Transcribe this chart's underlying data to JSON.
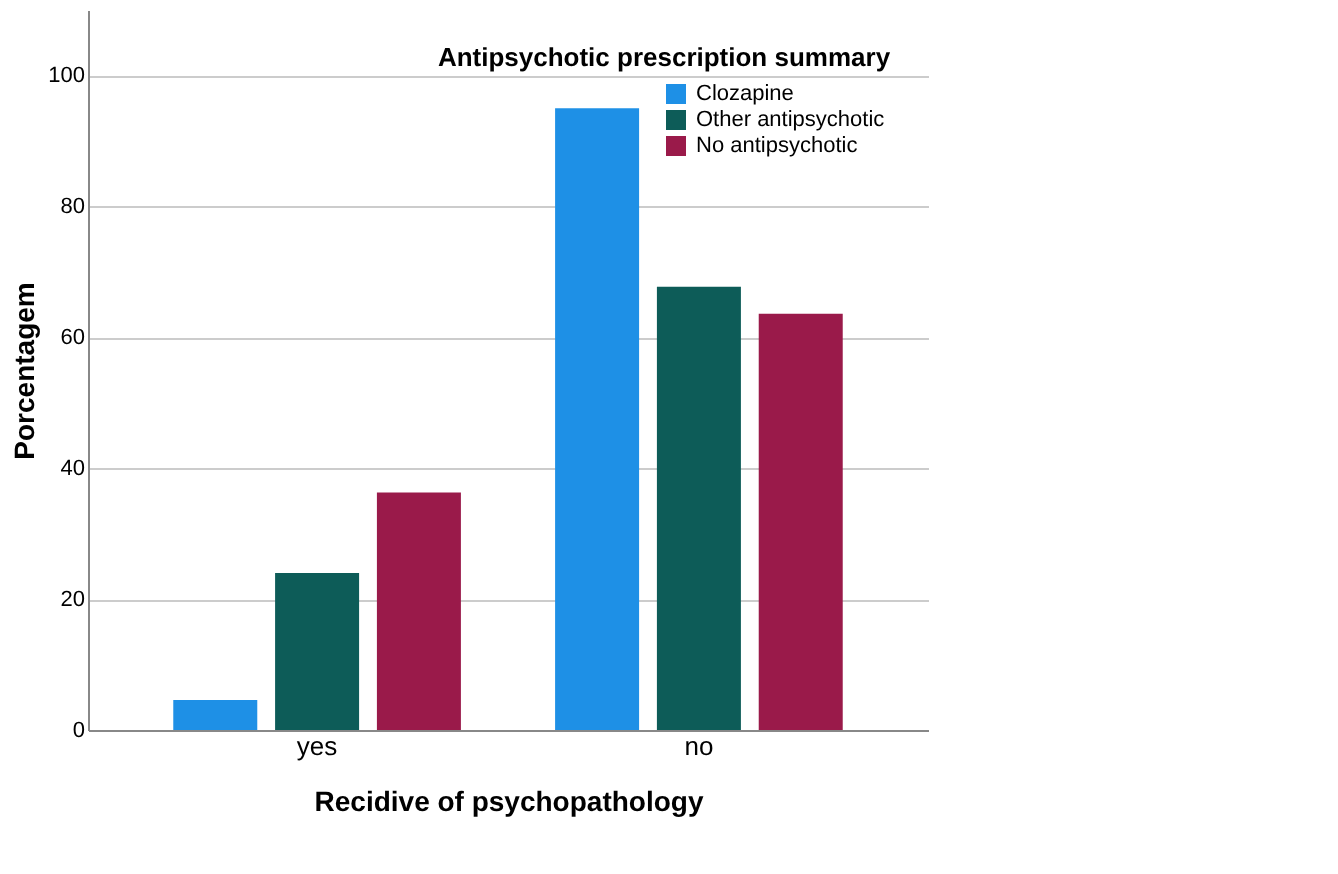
{
  "chart_data": {
    "type": "bar",
    "xlabel": "Recidive of psychopathology",
    "ylabel": "Porcentagem",
    "legend_title": "Antipsychotic prescription summary",
    "categories": [
      "yes",
      "no"
    ],
    "series": [
      {
        "name": "Clozapine",
        "color": "#1e90e6",
        "values": [
          4.6,
          95
        ]
      },
      {
        "name": "Other antipsychotic",
        "color": "#0d5c58",
        "values": [
          24,
          67.7
        ]
      },
      {
        "name": "No antipsychotic",
        "color": "#9a1a4a",
        "values": [
          36.3,
          63.6
        ]
      }
    ],
    "ylim": [
      0,
      110
    ],
    "yticks": [
      0,
      20,
      40,
      60,
      80,
      100
    ],
    "grid": "y",
    "legend": "top right"
  }
}
